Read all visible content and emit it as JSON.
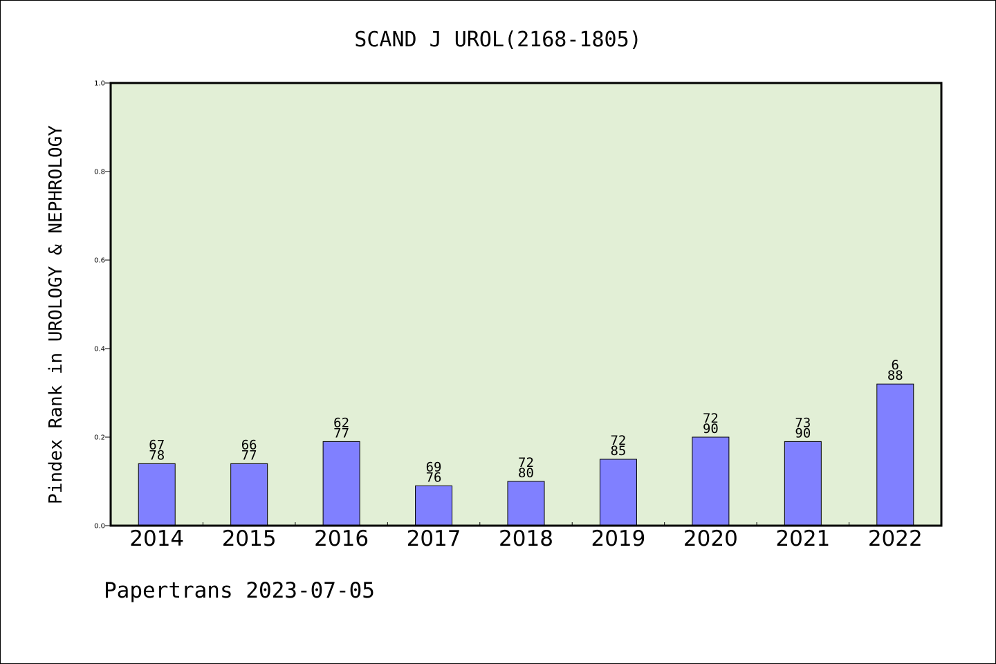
{
  "title": "SCAND J UROL(2168-1805)",
  "footer": "Papertrans 2023-07-05",
  "colors": {
    "plot_background": "#e2efd6",
    "bar_fill": "#8080ff",
    "bar_stroke": "#000000"
  },
  "chart_data": {
    "type": "bar",
    "title": "SCAND J UROL(2168-1805)",
    "xlabel": "",
    "ylabel": "Pindex Rank in UROLOGY & NEPHROLOGY",
    "ylim": [
      0,
      1.0
    ],
    "yticks": [
      "0.0",
      "0.2",
      "0.4",
      "0.6",
      "0.8",
      "1.0"
    ],
    "grid": false,
    "categories": [
      "2014",
      "2015",
      "2016",
      "2017",
      "2018",
      "2019",
      "2020",
      "2021",
      "2022"
    ],
    "values": [
      0.14,
      0.14,
      0.19,
      0.09,
      0.1,
      0.15,
      0.2,
      0.19,
      0.32
    ],
    "annotations_top": [
      "67",
      "66",
      "62",
      "69",
      "72",
      "72",
      "72",
      "73",
      "6"
    ],
    "annotations_bottom": [
      "78",
      "77",
      "77",
      "76",
      "80",
      "85",
      "90",
      "90",
      "88"
    ]
  }
}
